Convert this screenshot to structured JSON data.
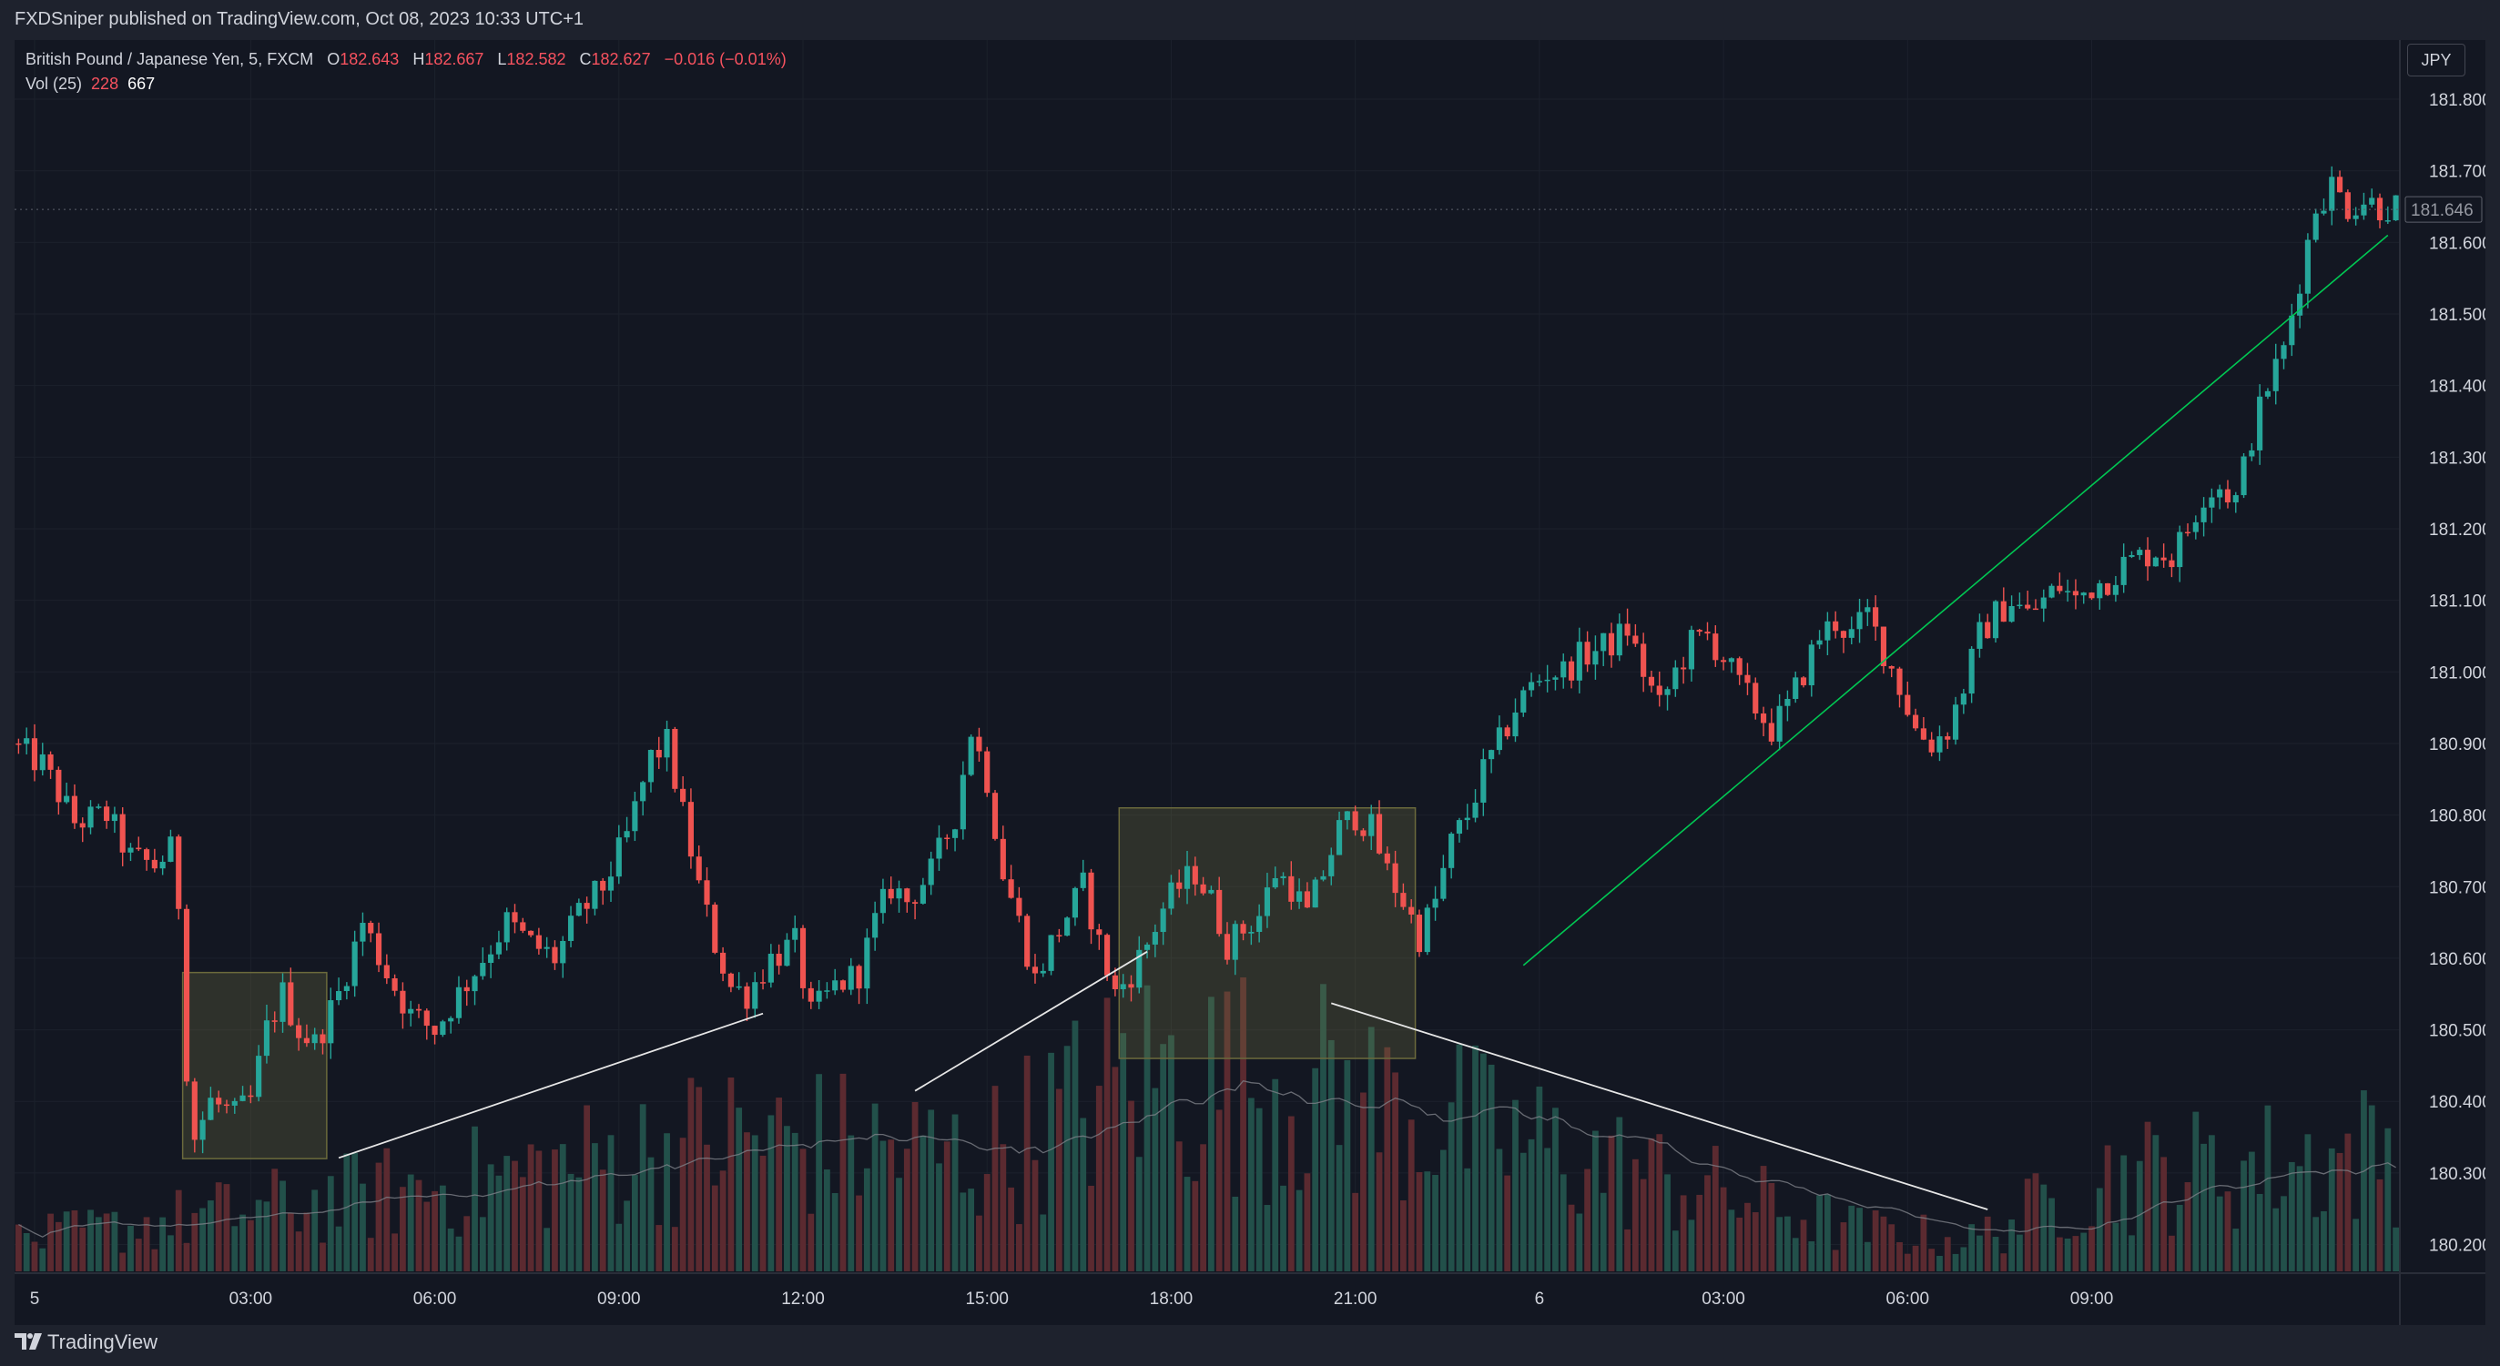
{
  "header": {
    "publisher_line": "FXDSniper published on TradingView.com, Oct 08, 2023 10:33 UTC+1"
  },
  "legend": {
    "symbol": "British Pound / Japanese Yen, 5, FXCM",
    "open_label": "O",
    "open": "182.643",
    "high_label": "H",
    "high": "182.667",
    "low_label": "L",
    "low": "182.582",
    "close_label": "C",
    "close": "182.627",
    "change": "−0.016 (−0.01%)"
  },
  "volume_legend": {
    "label": "Vol (25)",
    "value1": "228",
    "value2": "667"
  },
  "currency_button": "JPY",
  "footer": {
    "brand": "TradingView"
  },
  "colors": {
    "background": "#131722",
    "up": "#26a69a",
    "down": "#ef5350",
    "grid": "#1c212c",
    "trendline": "#00c853",
    "box": "#6b6a3c"
  },
  "chart_data": {
    "type": "candlestick",
    "symbol": "GBPJPY",
    "timeframe": "5",
    "y_tick_labels": [
      "181.800",
      "181.700",
      "181.600",
      "181.500",
      "181.400",
      "181.300",
      "181.200",
      "181.100",
      "181.000",
      "180.900",
      "180.800",
      "180.700",
      "180.600",
      "180.500",
      "180.400",
      "180.300",
      "180.200"
    ],
    "x_tick_labels": [
      "5",
      "03:00",
      "06:00",
      "09:00",
      "12:00",
      "15:00",
      "18:00",
      "21:00",
      "6",
      "03:00",
      "06:00",
      "09:00"
    ],
    "last_price": "181.646",
    "ylim": [
      180.16,
      181.87
    ],
    "price_path": [
      [
        0,
        180.9
      ],
      [
        4,
        180.87
      ],
      [
        8,
        180.79
      ],
      [
        12,
        180.8
      ],
      [
        15,
        180.74
      ],
      [
        18,
        180.73
      ],
      [
        20,
        180.75
      ],
      [
        21,
        180.68
      ],
      [
        22,
        180.45
      ],
      [
        23,
        180.35
      ],
      [
        25,
        180.4
      ],
      [
        28,
        180.38
      ],
      [
        30,
        180.4
      ],
      [
        32,
        180.5
      ],
      [
        34,
        180.55
      ],
      [
        36,
        180.5
      ],
      [
        38,
        180.48
      ],
      [
        41,
        180.55
      ],
      [
        44,
        180.65
      ],
      [
        47,
        180.58
      ],
      [
        50,
        180.52
      ],
      [
        53,
        180.5
      ],
      [
        56,
        180.55
      ],
      [
        59,
        180.6
      ],
      [
        62,
        180.65
      ],
      [
        65,
        180.62
      ],
      [
        68,
        180.6
      ],
      [
        71,
        180.66
      ],
      [
        74,
        180.7
      ],
      [
        77,
        180.77
      ],
      [
        80,
        180.88
      ],
      [
        82,
        180.9
      ],
      [
        84,
        180.8
      ],
      [
        86,
        180.7
      ],
      [
        88,
        180.62
      ],
      [
        90,
        180.56
      ],
      [
        92,
        180.55
      ],
      [
        95,
        180.6
      ],
      [
        98,
        180.62
      ],
      [
        100,
        180.52
      ],
      [
        103,
        180.56
      ],
      [
        106,
        180.58
      ],
      [
        108,
        180.65
      ],
      [
        110,
        180.7
      ],
      [
        112,
        180.68
      ],
      [
        115,
        180.72
      ],
      [
        118,
        180.8
      ],
      [
        120,
        180.92
      ],
      [
        122,
        180.85
      ],
      [
        124,
        180.72
      ],
      [
        126,
        180.65
      ],
      [
        128,
        180.57
      ],
      [
        130,
        180.62
      ],
      [
        132,
        180.66
      ],
      [
        134,
        180.7
      ],
      [
        136,
        180.62
      ],
      [
        138,
        180.55
      ],
      [
        140,
        180.58
      ],
      [
        142,
        180.62
      ],
      [
        144,
        180.67
      ],
      [
        146,
        180.7
      ],
      [
        148,
        180.72
      ],
      [
        150,
        180.68
      ],
      [
        152,
        180.62
      ],
      [
        154,
        180.64
      ],
      [
        156,
        180.66
      ],
      [
        158,
        180.72
      ],
      [
        160,
        180.7
      ],
      [
        162,
        180.66
      ],
      [
        164,
        180.72
      ],
      [
        166,
        180.78
      ],
      [
        168,
        180.8
      ],
      [
        170,
        180.78
      ],
      [
        172,
        180.72
      ],
      [
        174,
        180.68
      ],
      [
        176,
        180.63
      ],
      [
        178,
        180.68
      ],
      [
        180,
        180.76
      ],
      [
        182,
        180.8
      ],
      [
        184,
        180.86
      ],
      [
        186,
        180.9
      ],
      [
        188,
        180.95
      ],
      [
        190,
        180.98
      ],
      [
        192,
        181.0
      ],
      [
        194,
        181.0
      ],
      [
        196,
        181.02
      ],
      [
        198,
        181.03
      ],
      [
        200,
        181.04
      ],
      [
        202,
        181.06
      ],
      [
        204,
        181.0
      ],
      [
        206,
        180.95
      ],
      [
        208,
        181.0
      ],
      [
        210,
        181.04
      ],
      [
        212,
        181.05
      ],
      [
        214,
        181.02
      ],
      [
        216,
        180.98
      ],
      [
        218,
        180.95
      ],
      [
        220,
        180.92
      ],
      [
        222,
        180.95
      ],
      [
        224,
        181.0
      ],
      [
        226,
        181.05
      ],
      [
        228,
        181.07
      ],
      [
        230,
        181.05
      ],
      [
        232,
        181.08
      ],
      [
        234,
        181.03
      ],
      [
        236,
        180.98
      ],
      [
        238,
        180.92
      ],
      [
        240,
        180.9
      ],
      [
        242,
        180.92
      ],
      [
        244,
        180.98
      ],
      [
        246,
        181.05
      ],
      [
        248,
        181.08
      ],
      [
        250,
        181.1
      ],
      [
        252,
        181.08
      ],
      [
        254,
        181.1
      ],
      [
        256,
        181.12
      ],
      [
        258,
        181.1
      ],
      [
        260,
        181.12
      ],
      [
        262,
        181.13
      ],
      [
        264,
        181.15
      ],
      [
        266,
        181.16
      ],
      [
        268,
        181.17
      ],
      [
        270,
        181.16
      ],
      [
        272,
        181.2
      ],
      [
        274,
        181.25
      ],
      [
        276,
        181.26
      ],
      [
        278,
        181.24
      ],
      [
        280,
        181.33
      ],
      [
        282,
        181.4
      ],
      [
        284,
        181.45
      ],
      [
        286,
        181.55
      ],
      [
        288,
        181.65
      ],
      [
        290,
        181.68
      ],
      [
        292,
        181.65
      ],
      [
        294,
        181.66
      ],
      [
        296,
        181.65
      ]
    ],
    "volume_scale": [
      0,
      300
    ],
    "drawings": {
      "trendline": {
        "from": [
          188,
          180.59
        ],
        "to": [
          296,
          181.61
        ]
      },
      "boxes": [
        {
          "x0": 21,
          "x1": 39,
          "y0": 180.32,
          "y1": 180.58
        },
        {
          "x0": 138,
          "x1": 175,
          "y0": 180.46,
          "y1": 180.81
        }
      ],
      "volume_lines": [
        {
          "from": [
            40,
            110
          ],
          "to": [
            93,
            250
          ]
        },
        {
          "from": [
            112,
            175
          ],
          "to": [
            141,
            310
          ]
        },
        {
          "from": [
            164,
            260
          ],
          "to": [
            246,
            60
          ]
        }
      ]
    }
  }
}
